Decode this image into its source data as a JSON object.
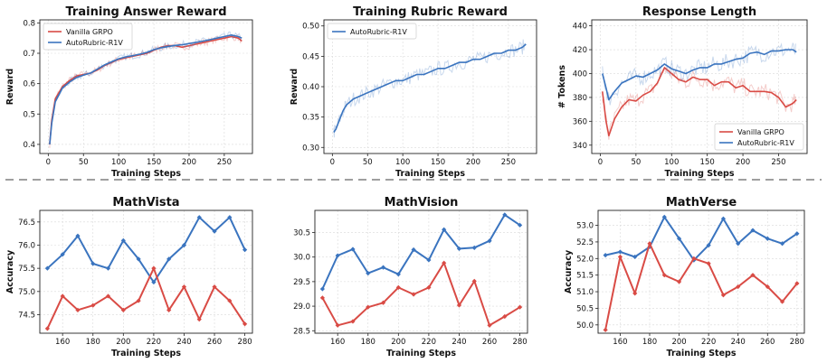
{
  "colors": {
    "red": "#d94b45",
    "blue": "#3a74bf"
  },
  "separator": {
    "style": "dashed",
    "color": "#666666"
  },
  "chart_data": [
    {
      "id": "answer-reward",
      "type": "line",
      "title": "Training Answer Reward",
      "xlabel": "Training Steps",
      "ylabel": "Reward",
      "xlim": [
        -12,
        290
      ],
      "ylim": [
        0.37,
        0.81
      ],
      "xticks": [
        0,
        50,
        100,
        150,
        200,
        250
      ],
      "yticks": [
        0.4,
        0.5,
        0.6,
        0.7,
        0.8
      ],
      "ytick_labels": [
        "0.4",
        "0.5",
        "0.6",
        "0.7",
        "0.8"
      ],
      "grid": true,
      "legend_position": "top-left",
      "noise": 0.012,
      "series": [
        {
          "name": "Vanilla GRPO",
          "color": "#d94b45",
          "x": [
            2,
            5,
            10,
            20,
            30,
            40,
            50,
            60,
            70,
            80,
            90,
            100,
            110,
            120,
            130,
            140,
            150,
            160,
            170,
            180,
            190,
            200,
            210,
            220,
            230,
            240,
            250,
            260,
            270,
            275
          ],
          "y": [
            0.4,
            0.48,
            0.55,
            0.59,
            0.61,
            0.625,
            0.63,
            0.635,
            0.645,
            0.66,
            0.67,
            0.68,
            0.685,
            0.69,
            0.695,
            0.7,
            0.71,
            0.72,
            0.725,
            0.725,
            0.72,
            0.725,
            0.73,
            0.735,
            0.74,
            0.745,
            0.75,
            0.755,
            0.75,
            0.74
          ]
        },
        {
          "name": "AutoRubric-R1V",
          "color": "#3a74bf",
          "x": [
            2,
            5,
            10,
            20,
            30,
            40,
            50,
            60,
            70,
            80,
            90,
            100,
            110,
            120,
            130,
            140,
            150,
            160,
            170,
            180,
            190,
            200,
            210,
            220,
            230,
            240,
            250,
            260,
            270,
            275
          ],
          "y": [
            0.4,
            0.47,
            0.54,
            0.585,
            0.605,
            0.62,
            0.628,
            0.635,
            0.648,
            0.662,
            0.672,
            0.682,
            0.688,
            0.692,
            0.697,
            0.703,
            0.712,
            0.718,
            0.722,
            0.726,
            0.728,
            0.732,
            0.736,
            0.74,
            0.745,
            0.75,
            0.755,
            0.76,
            0.755,
            0.75
          ]
        }
      ]
    },
    {
      "id": "rubric-reward",
      "type": "line",
      "title": "Training Rubric Reward",
      "xlabel": "Training Steps",
      "ylabel": "Reward",
      "xlim": [
        -12,
        290
      ],
      "ylim": [
        0.29,
        0.51
      ],
      "xticks": [
        0,
        50,
        100,
        150,
        200,
        250
      ],
      "yticks": [
        0.3,
        0.35,
        0.4,
        0.45,
        0.5
      ],
      "ytick_labels": [
        "0.30",
        "0.35",
        "0.40",
        "0.45",
        "0.50"
      ],
      "grid": true,
      "legend_position": "top-left",
      "noise": 0.012,
      "series": [
        {
          "name": "AutoRubric-R1V",
          "color": "#3a74bf",
          "x": [
            2,
            5,
            10,
            15,
            20,
            30,
            40,
            50,
            60,
            70,
            80,
            90,
            100,
            110,
            120,
            130,
            140,
            150,
            160,
            170,
            180,
            190,
            200,
            210,
            220,
            230,
            240,
            250,
            260,
            270,
            275
          ],
          "y": [
            0.325,
            0.33,
            0.345,
            0.36,
            0.37,
            0.38,
            0.385,
            0.39,
            0.395,
            0.4,
            0.405,
            0.41,
            0.41,
            0.415,
            0.42,
            0.42,
            0.425,
            0.43,
            0.43,
            0.435,
            0.44,
            0.44,
            0.445,
            0.445,
            0.45,
            0.455,
            0.455,
            0.46,
            0.46,
            0.465,
            0.47
          ]
        }
      ]
    },
    {
      "id": "response-length",
      "type": "line",
      "title": "Response Length",
      "xlabel": "Training Steps",
      "ylabel": "# Tokens",
      "xlim": [
        -12,
        290
      ],
      "ylim": [
        333,
        445
      ],
      "xticks": [
        0,
        50,
        100,
        150,
        200,
        250
      ],
      "yticks": [
        340,
        360,
        380,
        400,
        420,
        440
      ],
      "ytick_labels": [
        "340",
        "360",
        "380",
        "400",
        "420",
        "440"
      ],
      "grid": true,
      "legend_position": "lower-right",
      "noise": 7,
      "series": [
        {
          "name": "Vanilla GRPO",
          "color": "#d94b45",
          "x": [
            3,
            8,
            12,
            20,
            30,
            40,
            50,
            60,
            70,
            80,
            90,
            100,
            110,
            120,
            130,
            140,
            150,
            160,
            170,
            180,
            190,
            200,
            210,
            220,
            230,
            240,
            250,
            260,
            270,
            275
          ],
          "y": [
            385,
            360,
            348,
            362,
            372,
            378,
            377,
            382,
            385,
            392,
            405,
            400,
            395,
            393,
            397,
            395,
            395,
            390,
            393,
            393,
            388,
            390,
            385,
            385,
            385,
            384,
            380,
            372,
            375,
            378
          ]
        },
        {
          "name": "AutoRubric-R1V",
          "color": "#3a74bf",
          "x": [
            3,
            8,
            12,
            20,
            30,
            40,
            50,
            60,
            70,
            80,
            90,
            100,
            110,
            120,
            130,
            140,
            150,
            160,
            170,
            180,
            190,
            200,
            210,
            220,
            230,
            240,
            250,
            260,
            270,
            275
          ],
          "y": [
            400,
            388,
            378,
            385,
            392,
            395,
            398,
            397,
            400,
            403,
            408,
            404,
            402,
            400,
            403,
            405,
            405,
            408,
            408,
            410,
            412,
            413,
            417,
            418,
            416,
            419,
            419,
            420,
            420,
            418
          ]
        }
      ]
    },
    {
      "id": "mathvista",
      "type": "line",
      "title": "MathVista",
      "xlabel": "Training Steps",
      "ylabel": "Accuracy",
      "xlim": [
        145,
        285
      ],
      "ylim": [
        74.1,
        76.75
      ],
      "xticks": [
        160,
        180,
        200,
        220,
        240,
        260,
        280
      ],
      "yticks": [
        74.5,
        75.0,
        75.5,
        76.0,
        76.5
      ],
      "ytick_labels": [
        "74.5",
        "75.0",
        "75.5",
        "76.0",
        "76.5"
      ],
      "grid": true,
      "markers": true,
      "x": [
        150,
        160,
        170,
        180,
        190,
        200,
        210,
        220,
        230,
        240,
        250,
        260,
        270,
        280
      ],
      "series": [
        {
          "name": "",
          "color": "#3a74bf",
          "values": [
            75.5,
            75.8,
            76.2,
            75.6,
            75.5,
            76.1,
            75.7,
            75.2,
            75.7,
            76.0,
            76.6,
            76.3,
            76.6,
            75.9
          ]
        },
        {
          "name": "",
          "color": "#d94b45",
          "values": [
            74.2,
            74.9,
            74.6,
            74.7,
            74.9,
            74.6,
            74.8,
            75.5,
            74.6,
            75.1,
            74.4,
            75.1,
            74.8,
            74.3
          ]
        }
      ]
    },
    {
      "id": "mathvision",
      "type": "line",
      "title": "MathVision",
      "xlabel": "Training Steps",
      "ylabel": "",
      "xlim": [
        145,
        285
      ],
      "ylim": [
        28.45,
        30.95
      ],
      "xticks": [
        160,
        180,
        200,
        220,
        240,
        260,
        280
      ],
      "yticks": [
        28.5,
        29.0,
        29.5,
        30.0,
        30.5
      ],
      "ytick_labels": [
        "28.5",
        "29.0",
        "29.5",
        "30.0",
        "30.5"
      ],
      "grid": true,
      "markers": true,
      "x": [
        150,
        160,
        170,
        180,
        190,
        200,
        210,
        220,
        230,
        240,
        250,
        260,
        270,
        280
      ],
      "series": [
        {
          "name": "",
          "color": "#3a74bf",
          "values": [
            29.35,
            30.03,
            30.16,
            29.67,
            29.79,
            29.65,
            30.15,
            29.94,
            30.56,
            30.17,
            30.19,
            30.33,
            30.86,
            30.65
          ]
        },
        {
          "name": "",
          "color": "#d94b45",
          "values": [
            29.17,
            28.61,
            28.69,
            28.98,
            29.07,
            29.38,
            29.24,
            29.38,
            29.88,
            29.02,
            29.51,
            28.61,
            28.79,
            28.98
          ]
        }
      ]
    },
    {
      "id": "mathverse",
      "type": "line",
      "title": "MathVerse",
      "xlabel": "Training Steps",
      "ylabel": "Accuracy",
      "xlim": [
        145,
        285
      ],
      "ylim": [
        49.75,
        53.45
      ],
      "xticks": [
        160,
        180,
        200,
        220,
        240,
        260,
        280
      ],
      "yticks": [
        50.0,
        50.5,
        51.0,
        51.5,
        52.0,
        52.5,
        53.0
      ],
      "ytick_labels": [
        "50.0",
        "50.5",
        "51.0",
        "51.5",
        "52.0",
        "52.5",
        "53.0"
      ],
      "grid": true,
      "markers": true,
      "x": [
        150,
        160,
        170,
        180,
        190,
        200,
        210,
        220,
        230,
        240,
        250,
        260,
        270,
        280
      ],
      "series": [
        {
          "name": "",
          "color": "#3a74bf",
          "values": [
            52.1,
            52.2,
            52.05,
            52.35,
            53.25,
            52.6,
            51.95,
            52.4,
            53.2,
            52.45,
            52.85,
            52.6,
            52.45,
            52.75
          ]
        },
        {
          "name": "",
          "color": "#d94b45",
          "values": [
            49.85,
            52.05,
            50.95,
            52.45,
            51.5,
            51.3,
            52.0,
            51.85,
            50.9,
            51.15,
            51.5,
            51.15,
            50.7,
            51.25
          ]
        }
      ]
    }
  ]
}
